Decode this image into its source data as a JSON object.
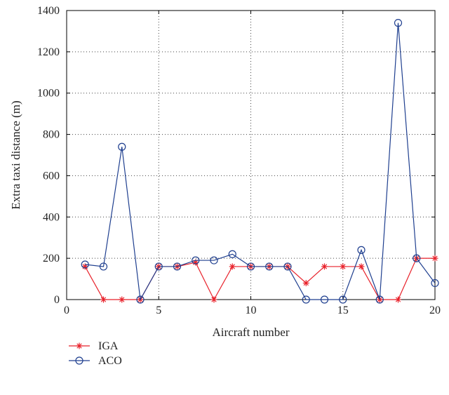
{
  "chart_data": {
    "type": "line",
    "xlabel": "Aircraft number",
    "ylabel": "Extra taxi distance (m)",
    "xlim": [
      0,
      20
    ],
    "ylim": [
      0,
      1400
    ],
    "xticks": [
      0,
      5,
      10,
      15,
      20
    ],
    "yticks": [
      0,
      200,
      400,
      600,
      800,
      1000,
      1200,
      1400
    ],
    "grid": true,
    "legend_position": "bottom-left",
    "series": [
      {
        "name": "IGA",
        "color": "#e8212a",
        "marker": "asterisk",
        "x": [
          1,
          2,
          3,
          4,
          5,
          6,
          7,
          8,
          9,
          10,
          11,
          12,
          13,
          14,
          15,
          16,
          17,
          18,
          19,
          20
        ],
        "y": [
          160,
          0,
          0,
          0,
          160,
          160,
          180,
          0,
          160,
          160,
          160,
          160,
          80,
          160,
          160,
          160,
          0,
          0,
          200,
          200
        ]
      },
      {
        "name": "ACO",
        "color": "#1f3f8f",
        "marker": "circle",
        "x": [
          1,
          2,
          3,
          4,
          5,
          6,
          7,
          8,
          9,
          10,
          11,
          12,
          13,
          14,
          15,
          16,
          17,
          18,
          19,
          20
        ],
        "y": [
          170,
          160,
          740,
          0,
          160,
          160,
          190,
          190,
          220,
          160,
          160,
          160,
          0,
          0,
          0,
          240,
          0,
          1340,
          200,
          80
        ]
      }
    ]
  }
}
